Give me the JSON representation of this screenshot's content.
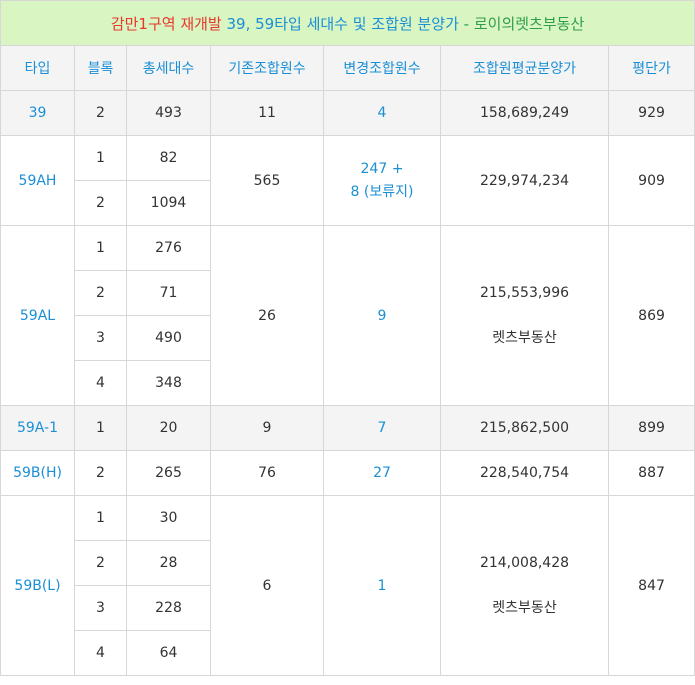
{
  "title": {
    "part1": "감만1구역 재개발 ",
    "part2": "39, 59타입 세대수 및 조합원 분양가",
    "sep": " - ",
    "part3": "로이의렛츠부동산"
  },
  "headers": [
    "타입",
    "블록",
    "총세대수",
    "기존조합원수",
    "변경조합원수",
    "조합원평균분양가",
    "평단가"
  ],
  "groups": [
    {
      "type": "39",
      "blocks": [
        {
          "block": "2",
          "units": "493"
        }
      ],
      "existing": "11",
      "changed": [
        "4"
      ],
      "price": "158,689,249",
      "price_note": "",
      "per_pyeong": "929"
    },
    {
      "type": "59AH",
      "blocks": [
        {
          "block": "1",
          "units": "82"
        },
        {
          "block": "2",
          "units": "1094"
        }
      ],
      "existing": "565",
      "changed": [
        "247 +",
        "8 (보류지)"
      ],
      "price": "229,974,234",
      "price_note": "",
      "per_pyeong": "909"
    },
    {
      "type": "59AL",
      "blocks": [
        {
          "block": "1",
          "units": "276"
        },
        {
          "block": "2",
          "units": "71"
        },
        {
          "block": "3",
          "units": "490"
        },
        {
          "block": "4",
          "units": "348"
        }
      ],
      "existing": "26",
      "changed": [
        "9"
      ],
      "price": "215,553,996",
      "price_note": "렛츠부동산",
      "per_pyeong": "869"
    },
    {
      "type": "59A-1",
      "blocks": [
        {
          "block": "1",
          "units": "20"
        }
      ],
      "existing": "9",
      "changed": [
        "7"
      ],
      "price": "215,862,500",
      "price_note": "",
      "per_pyeong": "899"
    },
    {
      "type": "59B(H)",
      "blocks": [
        {
          "block": "2",
          "units": "265"
        }
      ],
      "existing": "76",
      "changed": [
        "27"
      ],
      "price": "228,540,754",
      "price_note": "",
      "per_pyeong": "887"
    },
    {
      "type": "59B(L)",
      "blocks": [
        {
          "block": "1",
          "units": "30"
        },
        {
          "block": "2",
          "units": "28"
        },
        {
          "block": "3",
          "units": "228"
        },
        {
          "block": "4",
          "units": "64"
        }
      ],
      "existing": "6",
      "changed": [
        "1"
      ],
      "price": "214,008,428",
      "price_note": "렛츠부동산",
      "per_pyeong": "847"
    }
  ]
}
